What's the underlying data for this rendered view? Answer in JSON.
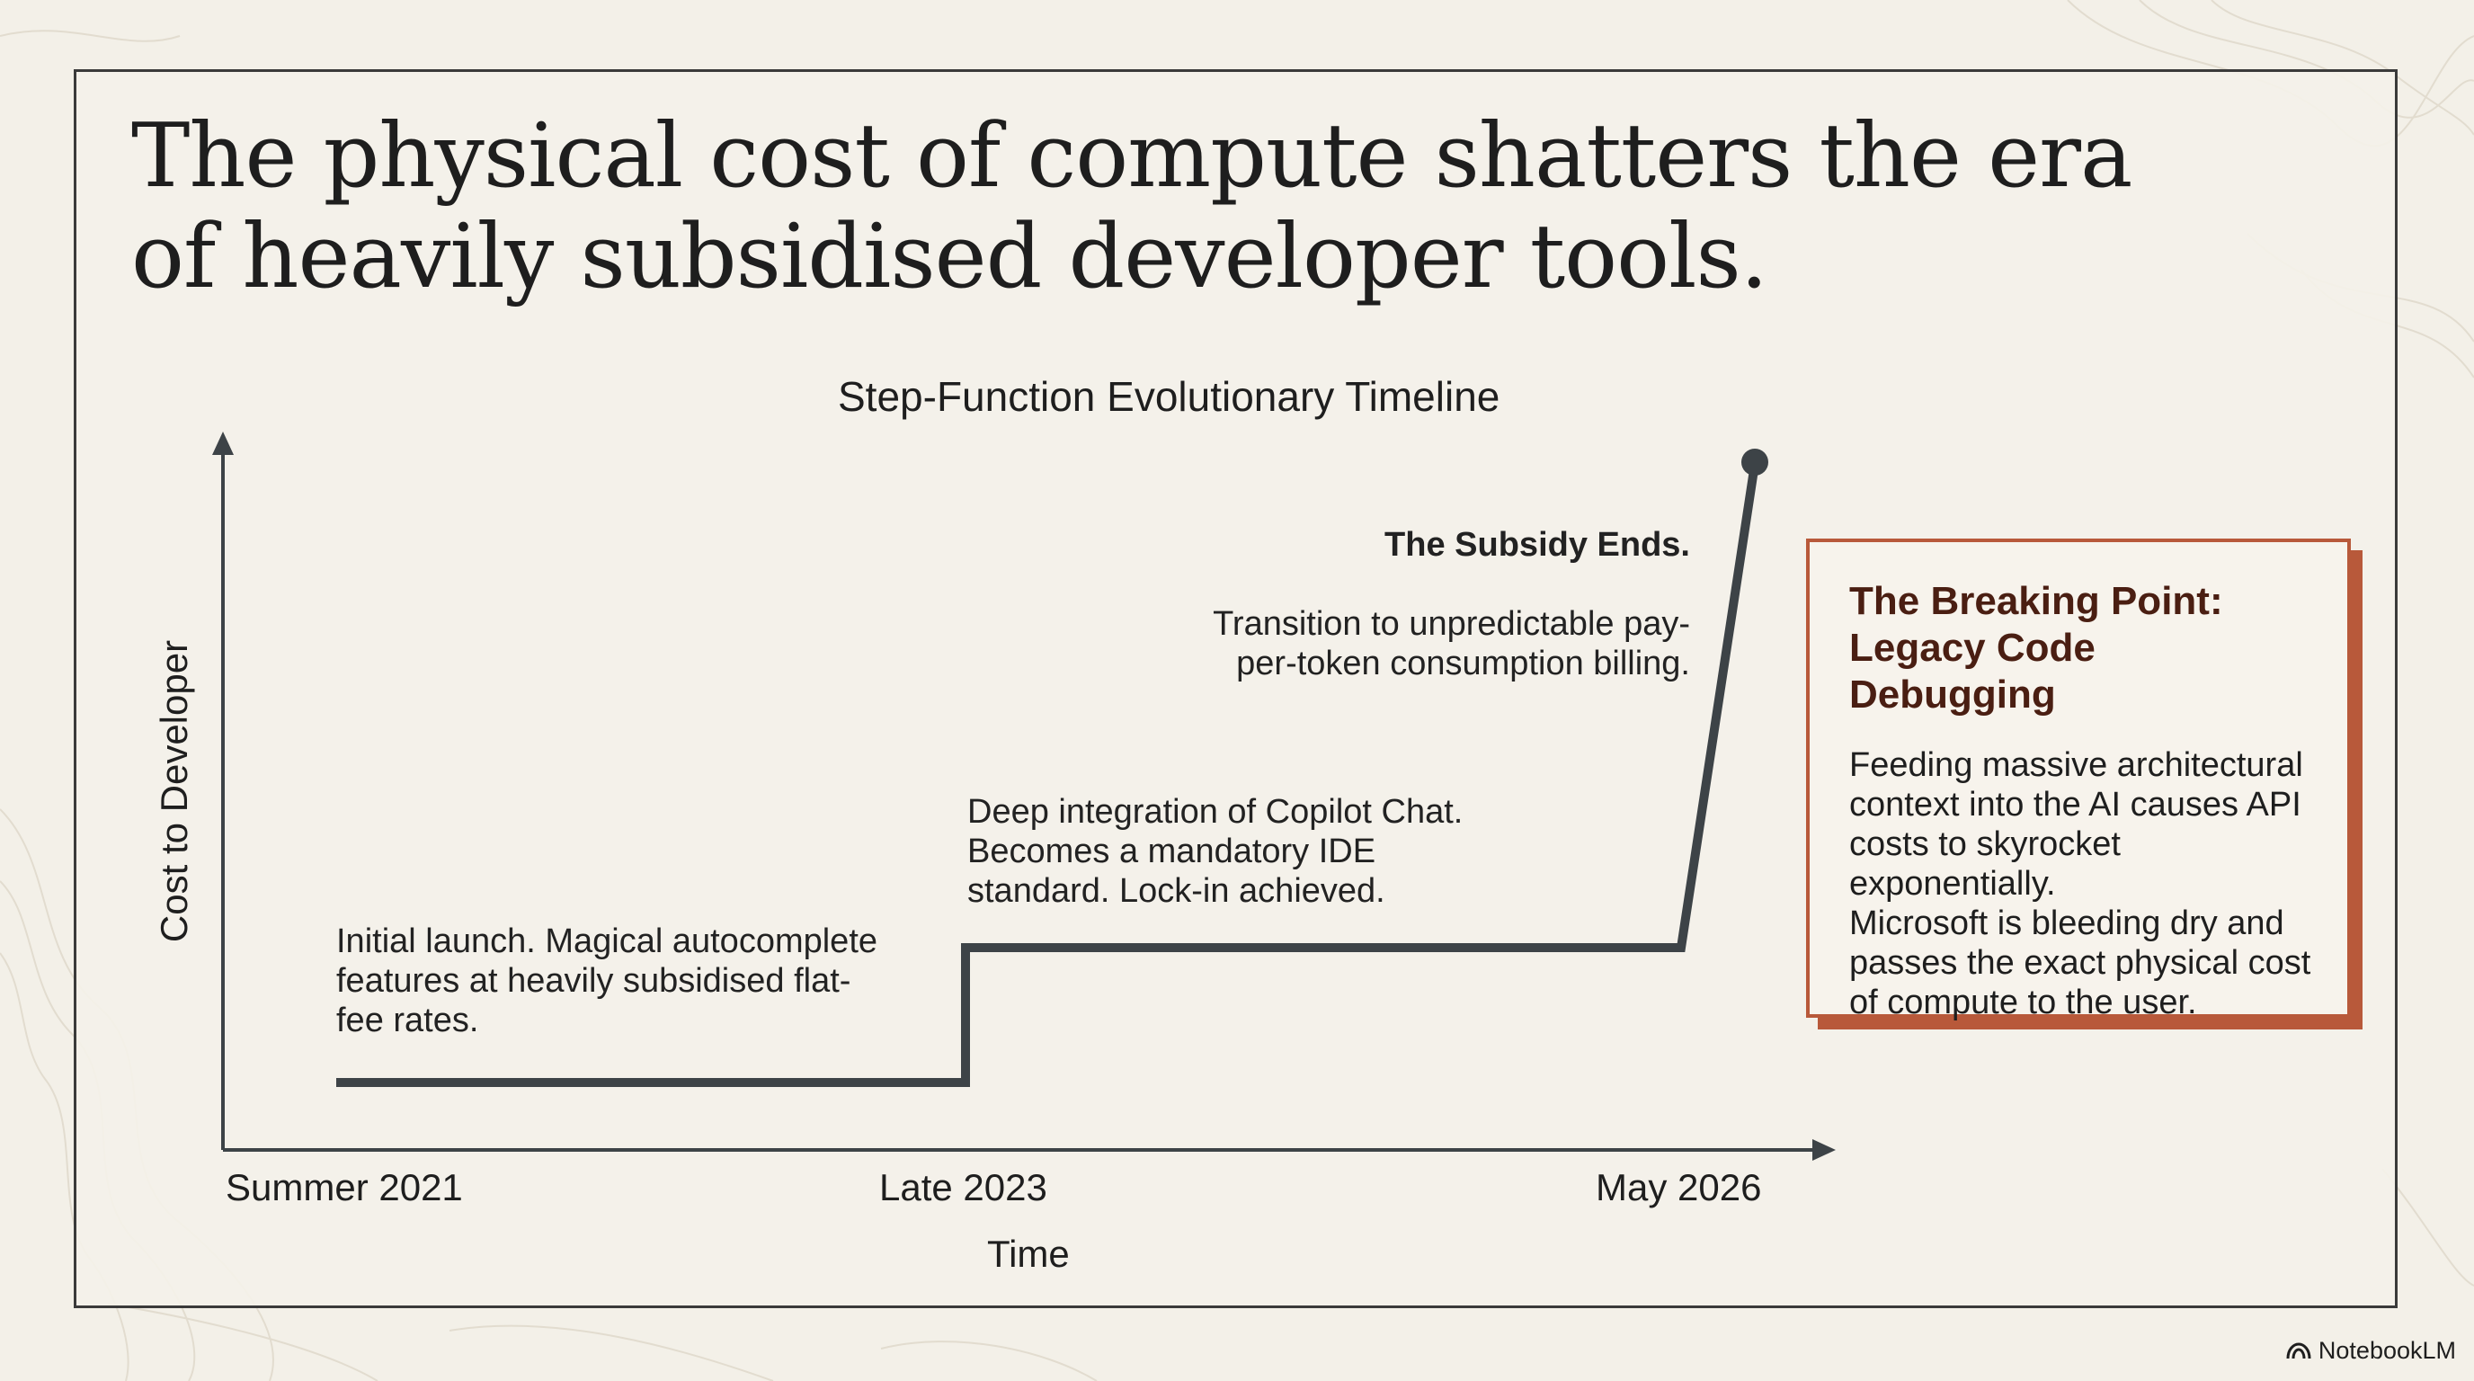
{
  "slide": {
    "title": "The physical cost of compute shatters the era of heavily subsidised developer tools."
  },
  "timeline": {
    "title": "Step-Function Evolutionary Timeline",
    "y_axis_label": "Cost to Developer",
    "x_axis_label": "Time",
    "ticks": [
      "Summer 2021",
      "Late 2023",
      "May 2026"
    ],
    "annotations": {
      "launch": "Initial launch. Magical autocomplete features at heavily subsidised flat-fee rates.",
      "integration": "Deep integration of Copilot Chat. Becomes a mandatory IDE standard. Lock-in achieved.",
      "subsidy_heading": "The Subsidy Ends.",
      "subsidy_body": "Transition to unpredictable pay-per-token consumption billing."
    }
  },
  "callout": {
    "title": "The Breaking Point: Legacy Code Debugging",
    "body_1": "Feeding massive architectural context into the AI causes API costs to skyrocket exponentially.",
    "body_2": "Microsoft is bleeding dry and passes the exact physical cost of compute to the user."
  },
  "brand": {
    "label": "NotebookLM",
    "icon": "notebooklm-logo-icon"
  },
  "colors": {
    "background": "#f3f0e8",
    "line": "#3d4347",
    "accent": "#b8593a",
    "callout_title": "#4a1e12"
  }
}
